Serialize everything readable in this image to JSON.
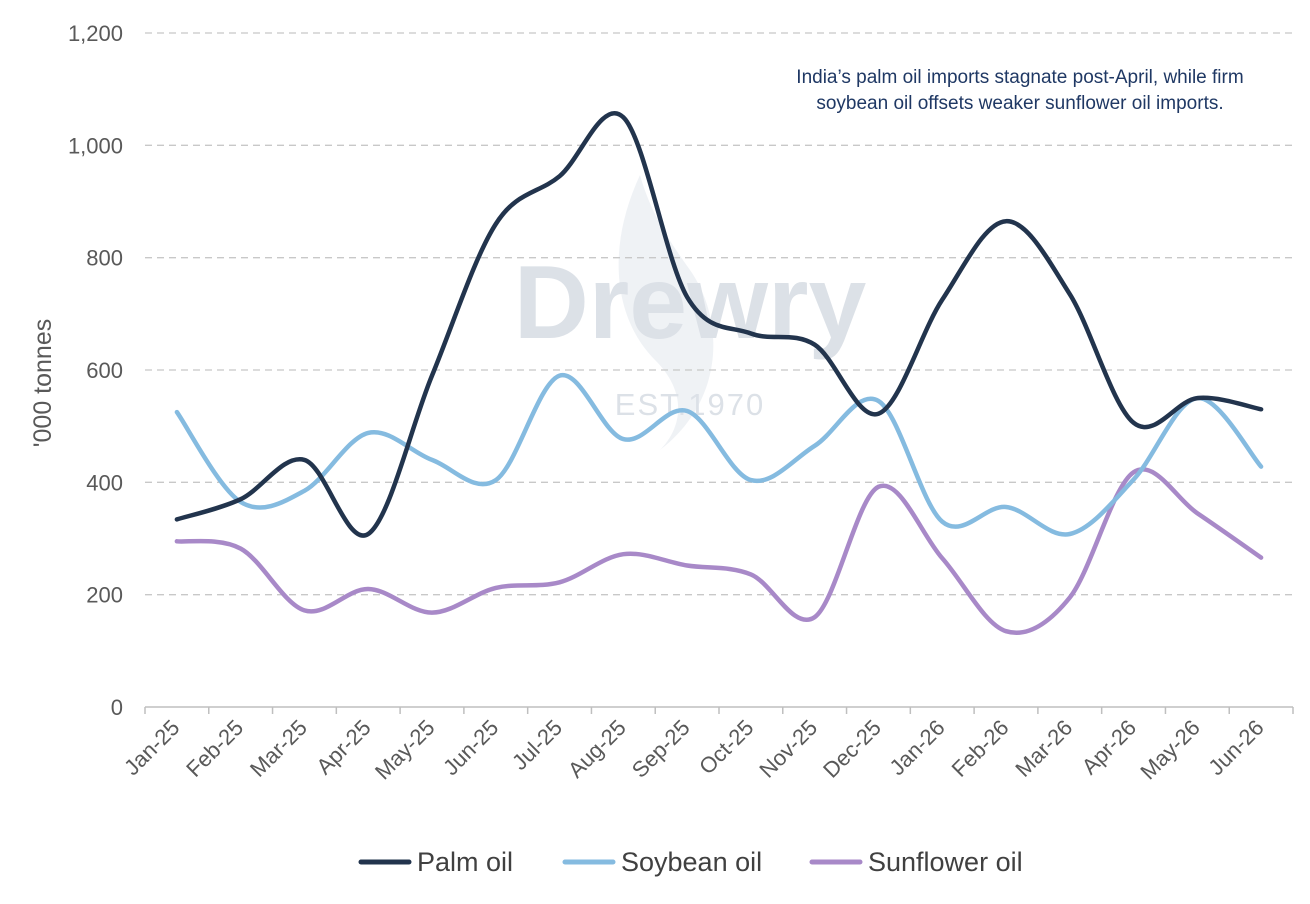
{
  "chart_data": {
    "type": "line",
    "title": "",
    "xlabel": "",
    "ylabel": "'000 tonnes",
    "ylim": [
      0,
      1200
    ],
    "yticks": [
      0,
      200,
      400,
      600,
      800,
      1000,
      1200
    ],
    "ytick_labels": [
      "0",
      "200",
      "400",
      "600",
      "800",
      "1,000",
      "1,200"
    ],
    "categories": [
      "Jan-25",
      "Feb-25",
      "Mar-25",
      "Apr-25",
      "May-25",
      "Jun-25",
      "Jul-25",
      "Aug-25",
      "Sep-25",
      "Oct-25",
      "Nov-25",
      "Dec-25",
      "Jan-26",
      "Feb-26",
      "Mar-26",
      "Apr-26",
      "May-26",
      "Jun-26"
    ],
    "grid": "horizontal dashed",
    "legend_position": "bottom",
    "annotation": [
      "India’s palm oil imports stagnate post-April, while firm",
      "soybean oil offsets weaker sunflower oil imports."
    ],
    "watermark": {
      "brand": "Drewry",
      "tagline": "EST.1970"
    },
    "series": [
      {
        "name": "Palm oil",
        "color": "#22344d",
        "values": [
          334,
          370,
          440,
          308,
          590,
          860,
          945,
          1050,
          730,
          665,
          645,
          522,
          725,
          865,
          735,
          506,
          550,
          530
        ]
      },
      {
        "name": "Soybean oil",
        "color": "#85bbe0",
        "values": [
          525,
          365,
          385,
          488,
          440,
          404,
          590,
          477,
          527,
          404,
          465,
          545,
          330,
          356,
          308,
          405,
          550,
          428
        ]
      },
      {
        "name": "Sunflower oil",
        "color": "#a889c8",
        "values": [
          295,
          282,
          172,
          210,
          168,
          212,
          222,
          272,
          252,
          236,
          160,
          392,
          265,
          135,
          195,
          418,
          345,
          266
        ]
      }
    ]
  }
}
